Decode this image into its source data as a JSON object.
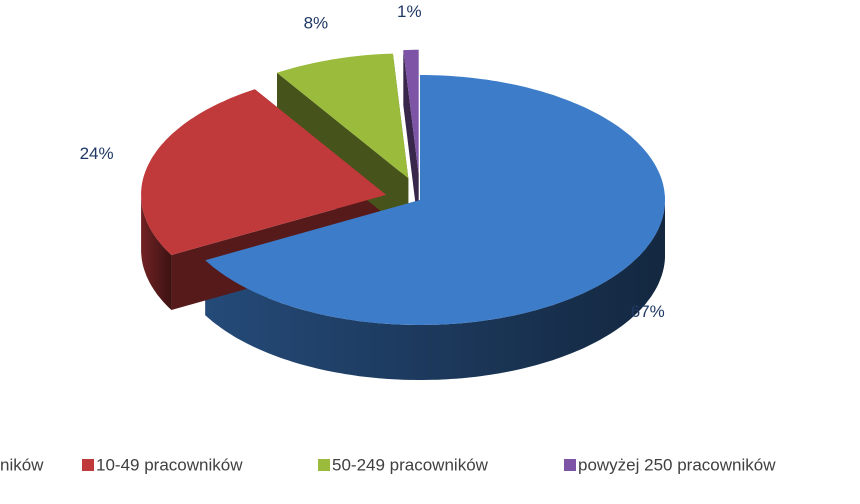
{
  "chart_data": {
    "type": "pie",
    "categories": [
      "ników",
      "10-49 pracowników",
      "50-249 pracowników",
      "powyżej 250 pracowników"
    ],
    "values": [
      67,
      24,
      8,
      1
    ],
    "value_labels": [
      "67%",
      "24%",
      "8%",
      "1%"
    ],
    "colors": [
      "#3d7cc9",
      "#c0393b",
      "#9bbb3c",
      "#7e55a6"
    ]
  }
}
